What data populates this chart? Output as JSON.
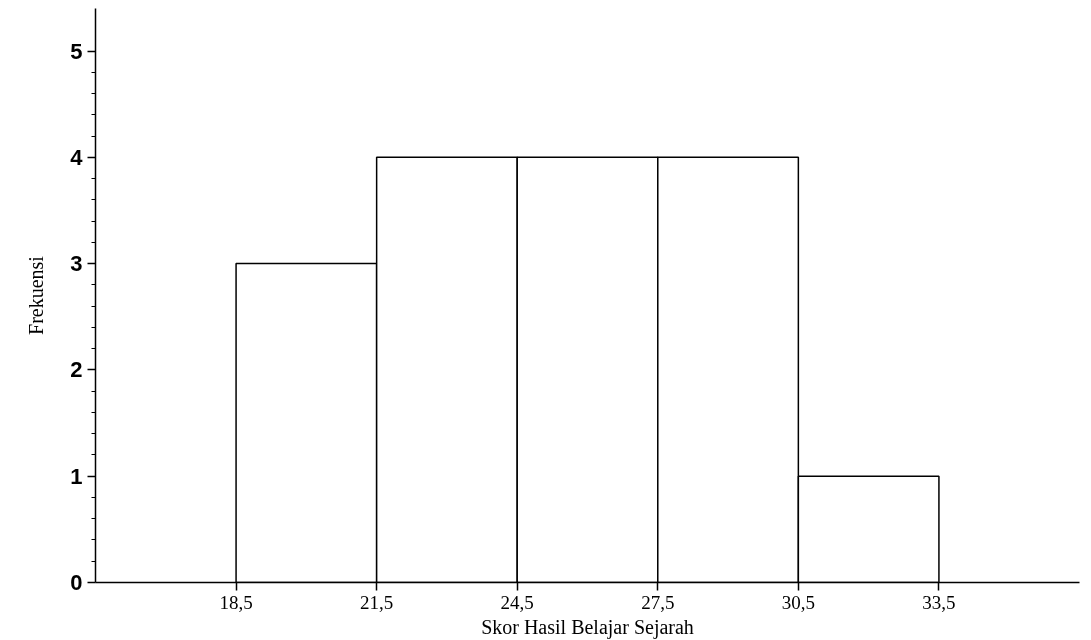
{
  "chart_data": {
    "type": "histogram",
    "xlabel": "Skor Hasil Belajar Sejarah",
    "ylabel": "Frekuensi",
    "bins": [
      18.5,
      21.5,
      24.5,
      27.5,
      30.5,
      33.5
    ],
    "values": [
      3,
      4,
      4,
      4,
      1
    ],
    "color": "#ffffff",
    "xlim": [
      15.5,
      36.5
    ],
    "ylim": [
      0,
      5.4
    ],
    "xticks": [
      {
        "value": 18.5,
        "label": "18,5"
      },
      {
        "value": 21.5,
        "label": "21,5"
      },
      {
        "value": 24.5,
        "label": "24,5"
      },
      {
        "value": 27.5,
        "label": "27,5"
      },
      {
        "value": 30.5,
        "label": "30,5"
      },
      {
        "value": 33.5,
        "label": "33,5"
      }
    ],
    "yticks": [
      0,
      {
        "value": 0.2,
        "label": null
      },
      {
        "value": 0.4,
        "label": null
      },
      {
        "value": 0.6,
        "label": null
      },
      {
        "value": 0.8,
        "label": null
      },
      1,
      {
        "value": 1.2,
        "label": null
      },
      {
        "value": 1.4,
        "label": null
      },
      {
        "value": 1.6,
        "label": null
      },
      {
        "value": 1.8,
        "label": null
      },
      2,
      {
        "value": 2.2,
        "label": null
      },
      {
        "value": 2.4,
        "label": null
      },
      {
        "value": 2.6,
        "label": null
      },
      {
        "value": 2.8,
        "label": null
      },
      3,
      {
        "value": 3.2,
        "label": null
      },
      {
        "value": 3.4,
        "label": null
      },
      {
        "value": 3.6,
        "label": null
      },
      {
        "value": 3.8,
        "label": null
      },
      4,
      {
        "value": 4.2,
        "label": null
      },
      {
        "value": 4.4,
        "label": null
      },
      {
        "value": 4.6,
        "label": null
      },
      {
        "value": 4.8,
        "label": null
      },
      5
    ],
    "grid": false
  }
}
